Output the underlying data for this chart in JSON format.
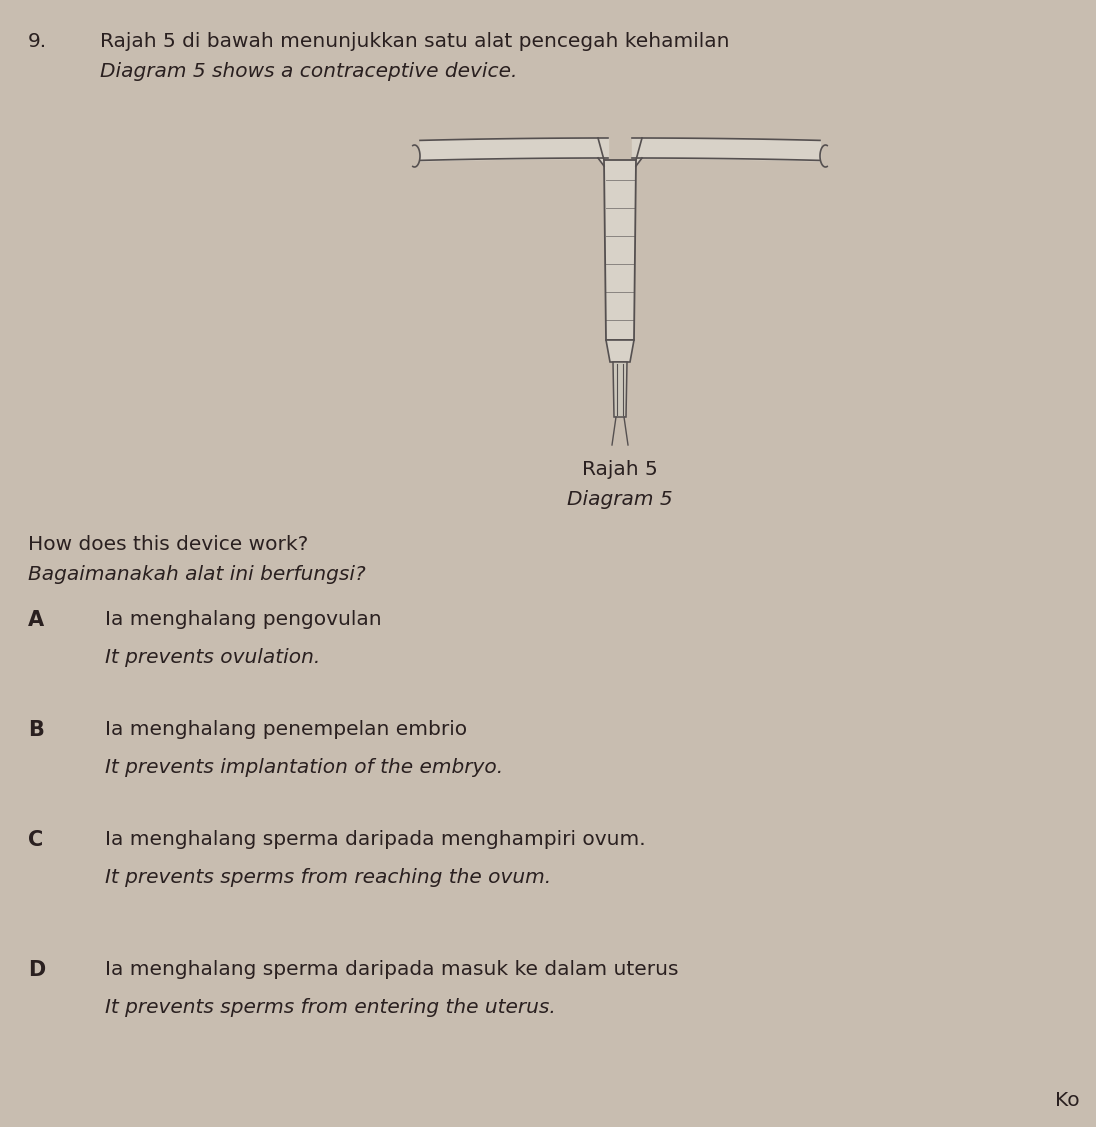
{
  "background_color": "#c8bdb0",
  "question_number": "9.",
  "title_line1": "Rajah 5 di bawah menunjukkan satu alat pencegah kehamilan",
  "title_line2": "Diagram 5 shows a contraceptive device.",
  "diagram_label1": "Rajah 5",
  "diagram_label2": "Diagram 5",
  "question_text1": "How does this device work?",
  "question_text2": "Bagaimanakah alat ini berfungsi?",
  "options": [
    {
      "letter": "A",
      "line1": "Ia menghalang pengovulan",
      "line2": "It prevents ovulation."
    },
    {
      "letter": "B",
      "line1": "Ia menghalang penempelan embrio",
      "line2": "It prevents implantation of the embryo."
    },
    {
      "letter": "C",
      "line1": "Ia menghalang sperma daripada menghampiri ovum.",
      "line2": "It prevents sperms from reaching the ovum."
    },
    {
      "letter": "D",
      "line1": "Ia menghalang sperma daripada masuk ke dalam uterus",
      "line2": "It prevents sperms from entering the uterus."
    }
  ],
  "footer_text": "Ko",
  "text_color": "#2a2020",
  "iud_color": "#6a6560",
  "iud_line_color": "#555050"
}
